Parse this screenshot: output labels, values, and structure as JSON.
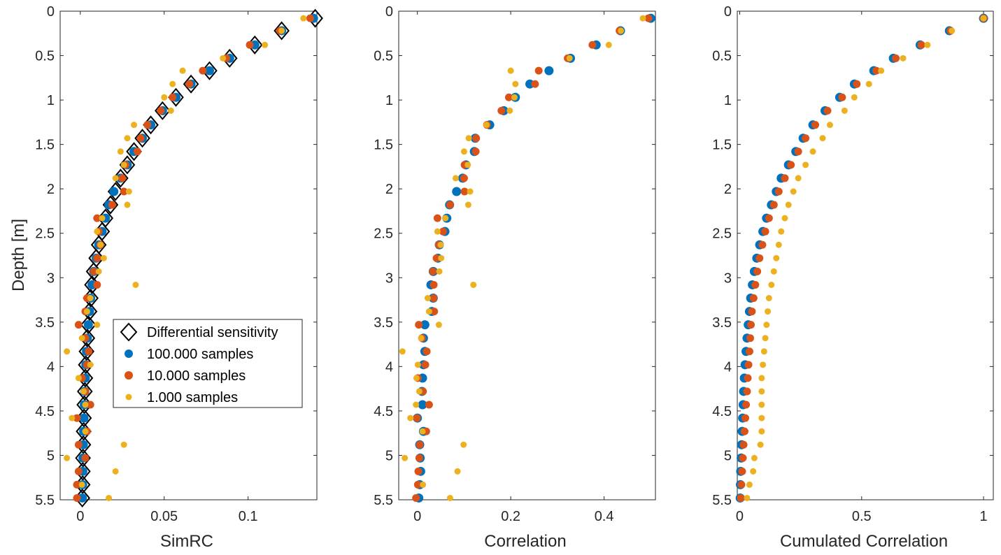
{
  "depth_axis": {
    "label": "Depth [m]",
    "ticks": [
      "0",
      "0.5",
      "1",
      "1.5",
      "2",
      "2.5",
      "3",
      "3.5",
      "4",
      "4.5",
      "5",
      "5.5"
    ],
    "range": [
      0,
      5.5
    ]
  },
  "colors": {
    "s100k": "#0072BD",
    "s10k": "#D95319",
    "s1k": "#EDB120",
    "diamond": "#000000",
    "axis": "#262626"
  },
  "legend": [
    {
      "label": "Differential sensitivity",
      "marker": "diamond"
    },
    {
      "label": "100.000 samples",
      "marker": "s100k"
    },
    {
      "label": "10.000 samples",
      "marker": "s10k"
    },
    {
      "label": "1.000 samples",
      "marker": "s1k"
    }
  ],
  "chart_data": [
    {
      "type": "scatter",
      "xlabel": "SimRC",
      "ylabel": "Depth [m]",
      "xlim": [
        -0.012,
        0.141
      ],
      "ylim": [
        0,
        5.5
      ],
      "xticks": [
        "0",
        "0.05",
        "0.1"
      ],
      "xtick_values": [
        0,
        0.05,
        0.1
      ],
      "depths": [
        0.08,
        0.22,
        0.38,
        0.53,
        0.67,
        0.82,
        0.97,
        1.12,
        1.28,
        1.43,
        1.58,
        1.73,
        1.88,
        2.03,
        2.18,
        2.33,
        2.48,
        2.63,
        2.78,
        2.93,
        3.08,
        3.23,
        3.38,
        3.53,
        3.68,
        3.83,
        3.98,
        4.13,
        4.28,
        4.43,
        4.58,
        4.73,
        4.88,
        5.03,
        5.18,
        5.33,
        5.48
      ],
      "series": [
        {
          "name": "Differential sensitivity",
          "marker": "diamond",
          "values": [
            0.14,
            0.12,
            0.104,
            0.089,
            0.077,
            0.066,
            0.057,
            0.049,
            0.042,
            0.037,
            0.032,
            0.028,
            0.024,
            0.021,
            0.018,
            0.015,
            0.013,
            0.011,
            0.0095,
            0.008,
            0.007,
            0.0062,
            0.0055,
            0.0048,
            0.0042,
            0.0037,
            0.0033,
            0.003,
            0.0027,
            0.0024,
            0.0022,
            0.002,
            0.0018,
            0.0016,
            0.0015,
            0.0014,
            0.0012
          ]
        },
        {
          "name": "100.000 samples",
          "marker": "s100k",
          "values": [
            0.139,
            0.12,
            0.104,
            0.089,
            0.077,
            0.066,
            0.057,
            0.049,
            0.042,
            0.037,
            0.032,
            0.028,
            0.024,
            0.02,
            0.017,
            0.015,
            0.013,
            0.011,
            0.0095,
            0.008,
            0.007,
            0.0062,
            0.0055,
            0.0048,
            0.0042,
            0.0037,
            0.0033,
            0.003,
            0.0027,
            0.0024,
            0.0022,
            0.002,
            0.0018,
            0.0016,
            0.0015,
            0.0014,
            0.0012
          ]
        },
        {
          "name": "10.000 samples",
          "marker": "s10k",
          "values": [
            0.137,
            0.119,
            0.101,
            0.087,
            0.073,
            0.065,
            0.055,
            0.048,
            0.04,
            0.036,
            0.034,
            0.027,
            0.025,
            0.026,
            0.019,
            0.01,
            0.011,
            0.012,
            0.01,
            0.008,
            0.01,
            0.004,
            0.003,
            -0.001,
            0.003,
            0.005,
            0.004,
            0.001,
            0.003,
            0.006,
            -0.002,
            0.004,
            -0.001,
            0.003,
            -0.001,
            -0.002,
            -0.002
          ]
        },
        {
          "name": "1.000 samples",
          "marker": "s1k",
          "values": [
            0.133,
            0.12,
            0.11,
            0.085,
            0.061,
            0.055,
            0.05,
            0.054,
            0.032,
            0.028,
            0.024,
            0.026,
            0.021,
            0.029,
            0.028,
            0.013,
            0.01,
            0.012,
            0.014,
            0.011,
            0.033,
            0.006,
            0.004,
            0.01,
            0.001,
            -0.008,
            0.006,
            -0.001,
            0.002,
            0.003,
            -0.005,
            0.003,
            0.026,
            -0.008,
            0.021,
            0.001,
            0.017
          ]
        }
      ]
    },
    {
      "type": "scatter",
      "xlabel": "Correlation",
      "ylabel": "Depth [m]",
      "xlim": [
        -0.04,
        0.51
      ],
      "ylim": [
        0,
        5.5
      ],
      "xticks": [
        "0",
        "0.2",
        "0.4"
      ],
      "xtick_values": [
        0,
        0.2,
        0.4
      ],
      "depths": [
        0.08,
        0.22,
        0.38,
        0.53,
        0.67,
        0.82,
        0.97,
        1.12,
        1.28,
        1.43,
        1.58,
        1.73,
        1.88,
        2.03,
        2.18,
        2.33,
        2.48,
        2.63,
        2.78,
        2.93,
        3.08,
        3.23,
        3.38,
        3.53,
        3.68,
        3.83,
        3.98,
        4.13,
        4.28,
        4.43,
        4.58,
        4.73,
        4.88,
        5.03,
        5.18,
        5.33,
        5.48
      ],
      "series": [
        {
          "name": "100.000 samples",
          "marker": "s100k",
          "values": [
            0.5,
            0.435,
            0.383,
            0.328,
            0.282,
            0.241,
            0.21,
            0.185,
            0.155,
            0.124,
            0.122,
            0.104,
            0.097,
            0.084,
            0.069,
            0.063,
            0.059,
            0.047,
            0.044,
            0.034,
            0.029,
            0.034,
            0.031,
            0.016,
            0.013,
            0.016,
            0.013,
            0.011,
            0.01,
            0.011,
            0.0,
            0.013,
            0.005,
            0.006,
            0.007,
            0.005,
            0.003
          ]
        },
        {
          "name": "10.000 samples",
          "marker": "s10k",
          "values": [
            0.495,
            0.433,
            0.375,
            0.322,
            0.26,
            0.252,
            0.196,
            0.18,
            0.149,
            0.126,
            0.125,
            0.101,
            0.1,
            0.101,
            0.07,
            0.043,
            0.055,
            0.046,
            0.041,
            0.033,
            0.035,
            0.035,
            0.036,
            0.003,
            0.01,
            0.02,
            0.017,
            0.001,
            0.012,
            0.025,
            -0.001,
            0.019,
            0.005,
            0.004,
            0.002,
            0.001,
            -0.003
          ]
        },
        {
          "name": "1.000 samples",
          "marker": "s1k",
          "values": [
            0.483,
            0.436,
            0.41,
            0.326,
            0.2,
            0.21,
            0.208,
            0.198,
            0.148,
            0.11,
            0.1,
            0.108,
            0.082,
            0.113,
            0.109,
            0.06,
            0.043,
            0.05,
            0.051,
            0.047,
            0.12,
            0.022,
            0.025,
            0.046,
            0.008,
            -0.032,
            0.001,
            -0.002,
            0.004,
            -0.003,
            -0.015,
            0.011,
            0.099,
            -0.027,
            0.086,
            0.012,
            0.07
          ]
        }
      ]
    },
    {
      "type": "scatter",
      "xlabel": "Cumulated Correlation",
      "ylabel": "Depth [m]",
      "xlim": [
        -0.01,
        1.04
      ],
      "ylim": [
        0,
        5.5
      ],
      "xticks": [
        "0",
        "0.5",
        "1"
      ],
      "xtick_values": [
        0,
        0.5,
        1
      ],
      "depths": [
        0.08,
        0.22,
        0.38,
        0.53,
        0.67,
        0.82,
        0.97,
        1.12,
        1.28,
        1.43,
        1.58,
        1.73,
        1.88,
        2.03,
        2.18,
        2.33,
        2.48,
        2.63,
        2.78,
        2.93,
        3.08,
        3.23,
        3.38,
        3.53,
        3.68,
        3.83,
        3.98,
        4.13,
        4.28,
        4.43,
        4.58,
        4.73,
        4.88,
        5.03,
        5.18,
        5.33,
        5.48
      ],
      "series": [
        {
          "name": "100.000 samples",
          "marker": "s100k",
          "values": [
            1.0,
            0.86,
            0.74,
            0.63,
            0.55,
            0.47,
            0.41,
            0.35,
            0.3,
            0.26,
            0.23,
            0.2,
            0.17,
            0.15,
            0.13,
            0.11,
            0.095,
            0.082,
            0.07,
            0.06,
            0.052,
            0.045,
            0.04,
            0.035,
            0.03,
            0.026,
            0.022,
            0.019,
            0.016,
            0.014,
            0.012,
            0.01,
            0.008,
            0.006,
            0.004,
            0.003,
            0.002
          ]
        },
        {
          "name": "10.000 samples",
          "marker": "s10k",
          "values": [
            1.0,
            0.865,
            0.745,
            0.64,
            0.56,
            0.48,
            0.42,
            0.36,
            0.31,
            0.27,
            0.24,
            0.21,
            0.185,
            0.16,
            0.14,
            0.12,
            0.105,
            0.093,
            0.081,
            0.072,
            0.064,
            0.057,
            0.05,
            0.046,
            0.043,
            0.04,
            0.036,
            0.033,
            0.03,
            0.026,
            0.023,
            0.02,
            0.016,
            0.013,
            0.01,
            0.007,
            0.004
          ]
        },
        {
          "name": "1.000 samples",
          "marker": "s1k",
          "values": [
            1.0,
            0.87,
            0.77,
            0.67,
            0.58,
            0.53,
            0.47,
            0.43,
            0.37,
            0.34,
            0.3,
            0.27,
            0.24,
            0.22,
            0.2,
            0.185,
            0.17,
            0.16,
            0.15,
            0.14,
            0.13,
            0.12,
            0.115,
            0.11,
            0.105,
            0.1,
            0.095,
            0.09,
            0.09,
            0.09,
            0.09,
            0.09,
            0.085,
            0.06,
            0.055,
            0.04,
            0.03
          ]
        }
      ]
    }
  ]
}
